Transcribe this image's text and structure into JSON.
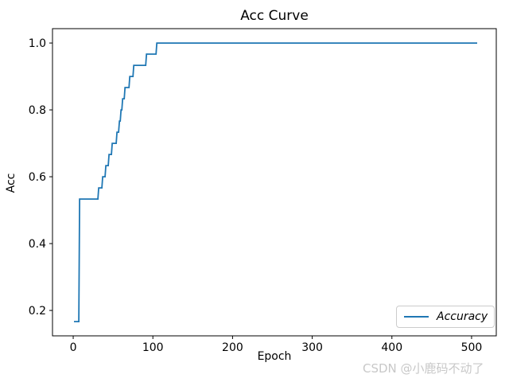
{
  "watermark": "CSDN @小鹿码不动了",
  "chart_data": {
    "type": "line",
    "title": "Acc Curve",
    "xlabel": "Epoch",
    "ylabel": "Acc",
    "xlim": [
      -26,
      531
    ],
    "ylim": [
      0.124,
      1.043
    ],
    "x_ticks": [
      0,
      100,
      200,
      300,
      400,
      500
    ],
    "y_ticks": [
      0.2,
      0.4,
      0.6,
      0.8,
      1.0
    ],
    "grid": false,
    "legend_position": "lower right",
    "series": [
      {
        "name": "Accuracy",
        "color": "#1f77b4",
        "points": [
          [
            1,
            0.1667
          ],
          [
            7,
            0.1667
          ],
          [
            8,
            0.5333
          ],
          [
            31,
            0.5333
          ],
          [
            32,
            0.5667
          ],
          [
            36,
            0.5667
          ],
          [
            37,
            0.6
          ],
          [
            40,
            0.6
          ],
          [
            41,
            0.6333
          ],
          [
            44,
            0.6333
          ],
          [
            45,
            0.6667
          ],
          [
            48,
            0.6667
          ],
          [
            49,
            0.7
          ],
          [
            54,
            0.7
          ],
          [
            55,
            0.7333
          ],
          [
            57,
            0.7333
          ],
          [
            58,
            0.7667
          ],
          [
            59,
            0.7667
          ],
          [
            60,
            0.8
          ],
          [
            61,
            0.8
          ],
          [
            62,
            0.8333
          ],
          [
            64,
            0.8333
          ],
          [
            65,
            0.8667
          ],
          [
            70,
            0.8667
          ],
          [
            71,
            0.9
          ],
          [
            75,
            0.9
          ],
          [
            76,
            0.9333
          ],
          [
            91,
            0.9333
          ],
          [
            92,
            0.9667
          ],
          [
            104,
            0.9667
          ],
          [
            105,
            1.0
          ],
          [
            507,
            1.0
          ]
        ]
      }
    ]
  }
}
